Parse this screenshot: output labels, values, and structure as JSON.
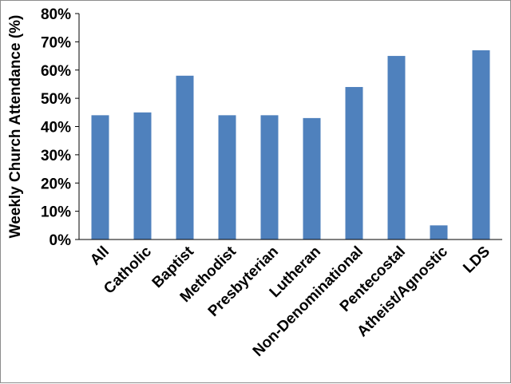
{
  "chart_data": {
    "type": "bar",
    "title": "",
    "xlabel": "",
    "ylabel": "Weekly Church Attendance (%)",
    "categories": [
      "All",
      "Catholic",
      "Baptist",
      "Methodist",
      "Presbyterian",
      "Lutheran",
      "Non-Denominational",
      "Pentecostal",
      "Atheist/Agnostic",
      "LDS"
    ],
    "values": [
      44,
      45,
      58,
      44,
      44,
      43,
      54,
      65,
      5,
      67
    ],
    "ylim": [
      0,
      80
    ],
    "yticks": [
      0,
      10,
      20,
      30,
      40,
      50,
      60,
      70,
      80
    ],
    "ytick_labels": [
      "0%",
      "10%",
      "20%",
      "30%",
      "40%",
      "50%",
      "60%",
      "70%",
      "80%"
    ],
    "grid": false,
    "legend": "none",
    "bar_color": "#4f81bd"
  }
}
